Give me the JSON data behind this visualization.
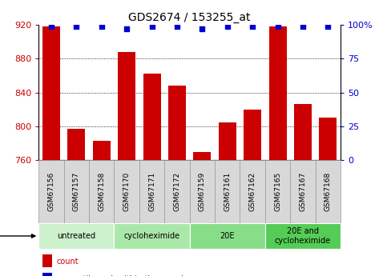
{
  "title": "GDS2674 / 153255_at",
  "samples": [
    "GSM67156",
    "GSM67157",
    "GSM67158",
    "GSM67170",
    "GSM67171",
    "GSM67172",
    "GSM67159",
    "GSM67161",
    "GSM67162",
    "GSM67165",
    "GSM67167",
    "GSM67168"
  ],
  "counts": [
    918,
    797,
    783,
    888,
    862,
    848,
    770,
    805,
    820,
    918,
    826,
    810
  ],
  "percentiles": [
    99,
    99,
    99,
    97,
    99,
    99,
    97,
    99,
    99,
    99,
    99,
    99
  ],
  "groups": [
    {
      "label": "untreated",
      "start": 0,
      "end": 3,
      "color": "#ccf0cc"
    },
    {
      "label": "cycloheximide",
      "start": 3,
      "end": 6,
      "color": "#aae8aa"
    },
    {
      "label": "20E",
      "start": 6,
      "end": 9,
      "color": "#88dd88"
    },
    {
      "label": "20E and\ncycloheximide",
      "start": 9,
      "end": 12,
      "color": "#55cc55"
    }
  ],
  "bar_color": "#cc0000",
  "dot_color": "#0000cc",
  "ylim_left": [
    760,
    920
  ],
  "ylim_right": [
    0,
    100
  ],
  "yticks_left": [
    760,
    800,
    840,
    880,
    920
  ],
  "yticks_right": [
    0,
    25,
    50,
    75,
    100
  ],
  "left_tick_color": "#cc0000",
  "right_tick_color": "#0000cc",
  "bar_bottom": 760,
  "label_box_color": "#d8d8d8",
  "label_box_edge": "#999999"
}
